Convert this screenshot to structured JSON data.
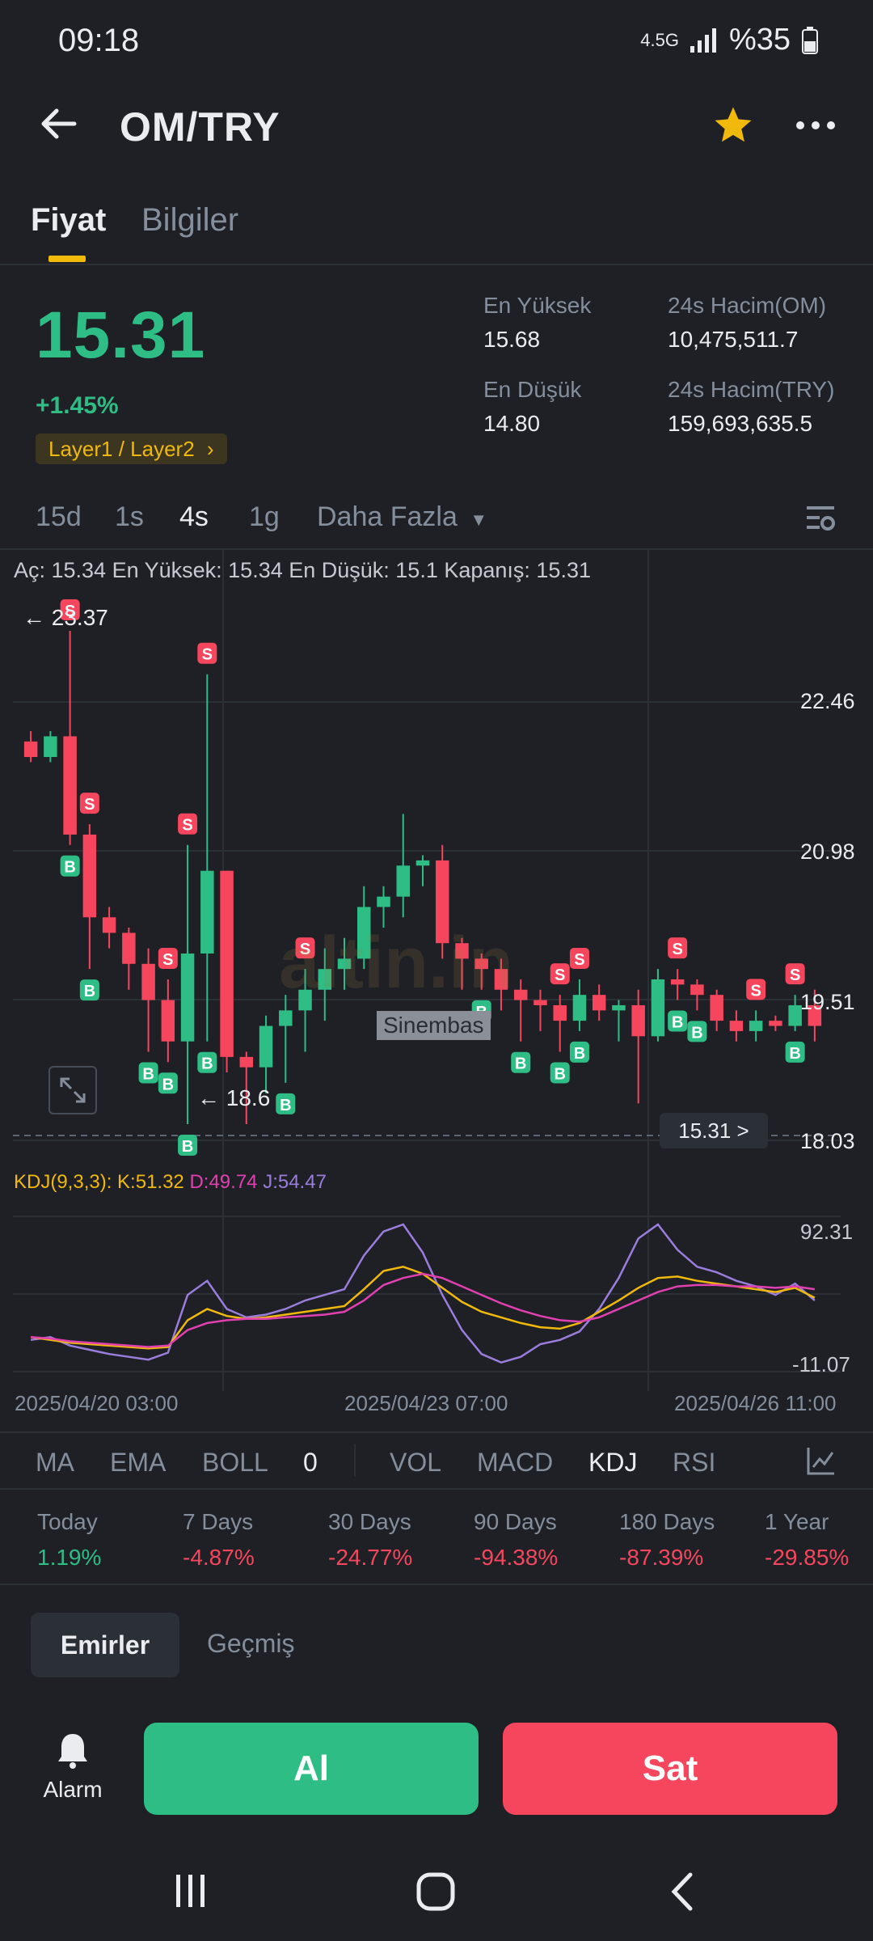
{
  "status_bar": {
    "time": "09:18",
    "battery": "%35",
    "network": "4.5G"
  },
  "header": {
    "title": "OM/TRY"
  },
  "tabs": [
    {
      "label": "Fiyat"
    },
    {
      "label": "Bilgiler"
    }
  ],
  "price": {
    "last": "15.31",
    "change": "+1.45%",
    "tag": "Layer1 / Layer2",
    "high_label": "En Yüksek",
    "high": "15.68",
    "low_label": "En Düşük",
    "low": "14.80",
    "vol_base_label": "24s Hacim(OM)",
    "vol_base": "10,475,511.7",
    "vol_quote_label": "24s Hacim(TRY)",
    "vol_quote": "159,693,635.5"
  },
  "intervals": [
    "15d",
    "1s",
    "4s",
    "1g",
    "Daha Fazla"
  ],
  "ohlc": "Aç: 15.34 En Yüksek: 15.34 En Düşük: 15.1 Kapanış: 15.31",
  "price_axis": [
    "22.46",
    "20.98",
    "19.51",
    "18.03"
  ],
  "markers": {
    "high": "← 23.37",
    "low": "← 18.6",
    "current": "15.31 >"
  },
  "watermark": {
    "brand": "altin.in",
    "tag": "Sinembas"
  },
  "kdj": {
    "prefix": "KDJ(9,3,3):",
    "k": "K:51.32",
    "d": "D:49.74",
    "j": "J:54.47",
    "max": "92.31",
    "min": "-11.07"
  },
  "time_axis": [
    "2025/04/20 03:00",
    "2025/04/23 07:00",
    "2025/04/26 11:00"
  ],
  "indicators": {
    "main": [
      "MA",
      "EMA",
      "BOLL",
      "0"
    ],
    "sub": [
      "VOL",
      "MACD",
      "KDJ",
      "RSI"
    ]
  },
  "performance": [
    {
      "label": "Today",
      "value": "1.19%"
    },
    {
      "label": "7 Days",
      "value": "-4.87%"
    },
    {
      "label": "30 Days",
      "value": "-24.77%"
    },
    {
      "label": "90 Days",
      "value": "-94.38%"
    },
    {
      "label": "180 Days",
      "value": "-87.39%"
    },
    {
      "label": "1 Year",
      "value": "-29.85%"
    }
  ],
  "orders": {
    "tab_orders": "Emirler",
    "tab_history": "Geçmiş"
  },
  "actions": {
    "alarm": "Alarm",
    "buy": "Al",
    "sell": "Sat"
  },
  "colors": {
    "up": "#2ebd85",
    "down": "#f6465d",
    "accent": "#f0b90b",
    "background": "#1e2026"
  },
  "chart_data": {
    "type": "candlestick",
    "price_range": [
      18.03,
      23.37
    ],
    "candles": [
      {
        "o": 22.3,
        "c": 22.15,
        "h": 22.4,
        "l": 22.1
      },
      {
        "o": 22.15,
        "c": 22.35,
        "h": 22.4,
        "l": 22.1
      },
      {
        "o": 22.35,
        "c": 21.4,
        "h": 23.37,
        "l": 21.3
      },
      {
        "o": 21.4,
        "c": 20.6,
        "h": 21.5,
        "l": 20.1
      },
      {
        "o": 20.6,
        "c": 20.45,
        "h": 20.7,
        "l": 20.3
      },
      {
        "o": 20.45,
        "c": 20.15,
        "h": 20.5,
        "l": 19.9
      },
      {
        "o": 20.15,
        "c": 19.8,
        "h": 20.3,
        "l": 19.3
      },
      {
        "o": 19.8,
        "c": 19.4,
        "h": 20.0,
        "l": 19.2
      },
      {
        "o": 19.4,
        "c": 20.25,
        "h": 21.3,
        "l": 18.6
      },
      {
        "o": 20.25,
        "c": 21.05,
        "h": 22.95,
        "l": 19.4
      },
      {
        "o": 21.05,
        "c": 19.25,
        "h": 21.05,
        "l": 19.1
      },
      {
        "o": 19.25,
        "c": 19.15,
        "h": 19.3,
        "l": 18.6
      },
      {
        "o": 19.15,
        "c": 19.55,
        "h": 19.65,
        "l": 18.9
      },
      {
        "o": 19.55,
        "c": 19.7,
        "h": 19.85,
        "l": 19.0
      },
      {
        "o": 19.7,
        "c": 19.9,
        "h": 20.1,
        "l": 19.3
      },
      {
        "o": 19.9,
        "c": 20.1,
        "h": 20.3,
        "l": 19.6
      },
      {
        "o": 20.1,
        "c": 20.2,
        "h": 20.4,
        "l": 19.9
      },
      {
        "o": 20.2,
        "c": 20.7,
        "h": 20.9,
        "l": 20.1
      },
      {
        "o": 20.7,
        "c": 20.8,
        "h": 20.9,
        "l": 20.5
      },
      {
        "o": 20.8,
        "c": 21.1,
        "h": 21.6,
        "l": 20.6
      },
      {
        "o": 21.1,
        "c": 21.15,
        "h": 21.2,
        "l": 20.9
      },
      {
        "o": 21.15,
        "c": 20.35,
        "h": 21.3,
        "l": 20.2
      },
      {
        "o": 20.35,
        "c": 20.2,
        "h": 20.4,
        "l": 19.9
      },
      {
        "o": 20.2,
        "c": 20.1,
        "h": 20.25,
        "l": 19.9
      },
      {
        "o": 20.1,
        "c": 19.9,
        "h": 20.2,
        "l": 19.7
      },
      {
        "o": 19.9,
        "c": 19.8,
        "h": 20.0,
        "l": 19.4
      },
      {
        "o": 19.8,
        "c": 19.75,
        "h": 19.9,
        "l": 19.5
      },
      {
        "o": 19.75,
        "c": 19.6,
        "h": 19.85,
        "l": 19.3
      },
      {
        "o": 19.6,
        "c": 19.85,
        "h": 20.0,
        "l": 19.5
      },
      {
        "o": 19.85,
        "c": 19.7,
        "h": 19.95,
        "l": 19.6
      },
      {
        "o": 19.7,
        "c": 19.75,
        "h": 19.8,
        "l": 19.4
      },
      {
        "o": 19.75,
        "c": 19.45,
        "h": 19.9,
        "l": 18.8
      },
      {
        "o": 19.45,
        "c": 20.0,
        "h": 20.1,
        "l": 19.4
      },
      {
        "o": 20.0,
        "c": 19.95,
        "h": 20.1,
        "l": 19.8
      },
      {
        "o": 19.95,
        "c": 19.85,
        "h": 20.0,
        "l": 19.7
      },
      {
        "o": 19.85,
        "c": 19.6,
        "h": 19.9,
        "l": 19.5
      },
      {
        "o": 19.6,
        "c": 19.5,
        "h": 19.7,
        "l": 19.4
      },
      {
        "o": 19.5,
        "c": 19.6,
        "h": 19.7,
        "l": 19.4
      },
      {
        "o": 19.6,
        "c": 19.55,
        "h": 19.65,
        "l": 19.5
      },
      {
        "o": 19.55,
        "c": 19.75,
        "h": 19.85,
        "l": 19.5
      },
      {
        "o": 19.75,
        "c": 19.55,
        "h": 19.9,
        "l": 19.4
      }
    ],
    "kdj_range": [
      -11.07,
      92.31
    ],
    "kdj_k": [
      10,
      8,
      6,
      5,
      4,
      3,
      2,
      3,
      22,
      30,
      25,
      23,
      24,
      26,
      28,
      30,
      32,
      44,
      57,
      60,
      55,
      45,
      35,
      28,
      24,
      20,
      17,
      16,
      20,
      28,
      36,
      45,
      52,
      53,
      50,
      48,
      46,
      44,
      42,
      45,
      38
    ],
    "kdj_d": [
      10,
      9,
      7,
      6,
      5,
      4,
      3,
      4,
      15,
      20,
      22,
      23,
      23,
      24,
      25,
      26,
      28,
      36,
      47,
      52,
      55,
      52,
      46,
      40,
      34,
      29,
      25,
      22,
      21,
      24,
      30,
      36,
      42,
      46,
      47,
      47,
      46,
      46,
      45,
      46,
      44
    ],
    "kdj_j": [
      8,
      10,
      4,
      1,
      -2,
      -4,
      -6,
      -1,
      40,
      50,
      30,
      24,
      26,
      30,
      36,
      40,
      44,
      68,
      85,
      90,
      70,
      40,
      15,
      -2,
      -8,
      -4,
      5,
      8,
      14,
      30,
      52,
      80,
      90,
      72,
      60,
      56,
      50,
      46,
      40,
      48,
      36
    ],
    "signals": [
      {
        "i": 2,
        "side": "S"
      },
      {
        "i": 3,
        "side": "S"
      },
      {
        "i": 2,
        "side": "B"
      },
      {
        "i": 3,
        "side": "B"
      },
      {
        "i": 6,
        "side": "B"
      },
      {
        "i": 7,
        "side": "B"
      },
      {
        "i": 7,
        "side": "S"
      },
      {
        "i": 8,
        "side": "S"
      },
      {
        "i": 8,
        "side": "B"
      },
      {
        "i": 9,
        "side": "S"
      },
      {
        "i": 9,
        "side": "B"
      },
      {
        "i": 13,
        "side": "B"
      },
      {
        "i": 14,
        "side": "S"
      },
      {
        "i": 23,
        "side": "B"
      },
      {
        "i": 25,
        "side": "B"
      },
      {
        "i": 27,
        "side": "B"
      },
      {
        "i": 27,
        "side": "S"
      },
      {
        "i": 28,
        "side": "B"
      },
      {
        "i": 28,
        "side": "S"
      },
      {
        "i": 33,
        "side": "S"
      },
      {
        "i": 33,
        "side": "B"
      },
      {
        "i": 34,
        "side": "B"
      },
      {
        "i": 37,
        "side": "S"
      },
      {
        "i": 39,
        "side": "S"
      },
      {
        "i": 39,
        "side": "B"
      }
    ]
  }
}
